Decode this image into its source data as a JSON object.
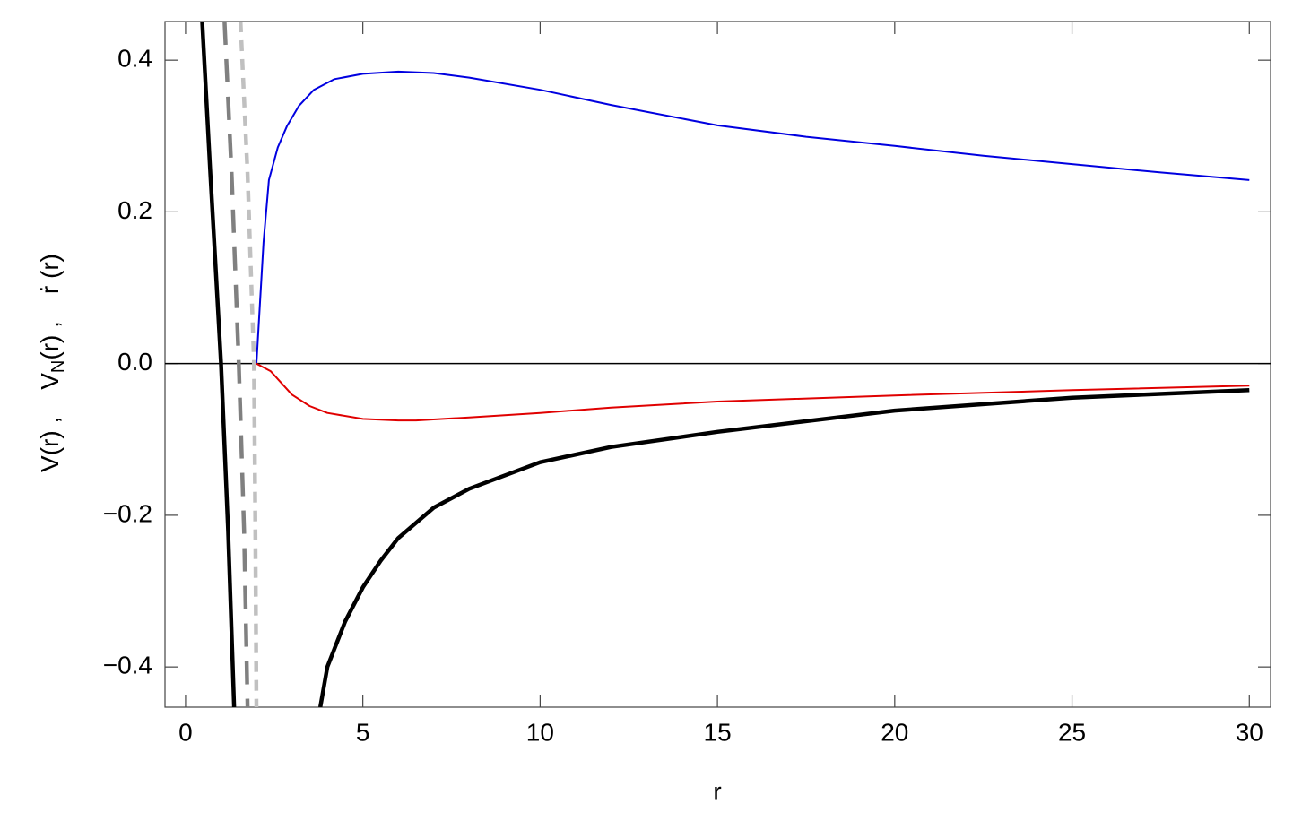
{
  "chart_data": {
    "type": "line",
    "xlabel": "r",
    "ylabel": [
      "V(r) ,",
      "V",
      "N",
      "(r) ,",
      "ṙ (r)"
    ],
    "xlim": [
      -0.58,
      30.6
    ],
    "ylim": [
      -0.453,
      0.451
    ],
    "xticks": [
      0,
      5,
      10,
      15,
      20,
      25,
      30
    ],
    "yticks": [
      {
        "value": -0.4,
        "label": "−0.4"
      },
      {
        "value": -0.2,
        "label": "−0.2"
      },
      {
        "value": 0,
        "label": "0.0"
      },
      {
        "value": 0.2,
        "label": "0.2"
      },
      {
        "value": 0.4,
        "label": "0.4"
      }
    ],
    "zero_axis": true,
    "series": [
      {
        "color": "#0000e0",
        "line_style": "solid",
        "thick": false,
        "x": [
          2,
          2.2,
          2.35,
          2.6,
          2.86,
          3.2,
          3.62,
          4.2,
          5,
          6,
          7,
          8,
          10,
          12,
          15,
          17.5,
          20,
          22.5,
          25,
          27.5,
          30
        ],
        "values": [
          0,
          0.16,
          0.242,
          0.285,
          0.313,
          0.34,
          0.361,
          0.375,
          0.382,
          0.385,
          0.383,
          0.377,
          0.361,
          0.341,
          0.314,
          0.299,
          0.287,
          0.274,
          0.263,
          0.252,
          0.242
        ]
      },
      {
        "color": "#e00000",
        "line_style": "solid",
        "thick": false,
        "x": [
          2,
          2.4,
          3,
          3.5,
          4,
          5,
          6,
          6.5,
          8,
          10,
          12,
          15,
          20,
          25,
          30
        ],
        "values": [
          0,
          -0.01,
          -0.041,
          -0.056,
          -0.065,
          -0.073,
          -0.075,
          -0.075,
          -0.071,
          -0.065,
          -0.058,
          -0.05,
          -0.042,
          -0.035,
          -0.029
        ]
      },
      {
        "color": "#000000",
        "line_style": "solid",
        "thick": true,
        "x": [
          3.8,
          4,
          4.5,
          5,
          5.5,
          6,
          7,
          8,
          10,
          12,
          15,
          20,
          25,
          30
        ],
        "values": [
          -0.453,
          -0.4,
          -0.34,
          -0.295,
          -0.26,
          -0.23,
          -0.19,
          -0.165,
          -0.13,
          -0.11,
          -0.09,
          -0.062,
          -0.045,
          -0.035
        ]
      },
      {
        "color": "#000000",
        "line_style": "solid",
        "thick": true,
        "x": [
          0.47,
          0.7,
          1.0,
          1.2,
          1.37
        ],
        "values": [
          0.451,
          0.25,
          0,
          -0.22,
          -0.453
        ]
      },
      {
        "color": "#808080",
        "line_style": "dashed",
        "thick": true,
        "x": [
          1.1,
          1.3,
          1.5,
          1.65,
          1.75
        ],
        "values": [
          0.451,
          0.25,
          0,
          -0.22,
          -0.453
        ]
      },
      {
        "color": "#c0c0c0",
        "line_style": "dotted",
        "thick": true,
        "x": [
          1.55,
          1.75,
          1.93,
          1.97,
          2.0
        ],
        "values": [
          0.451,
          0.25,
          0,
          -0.22,
          -0.453
        ]
      }
    ]
  }
}
